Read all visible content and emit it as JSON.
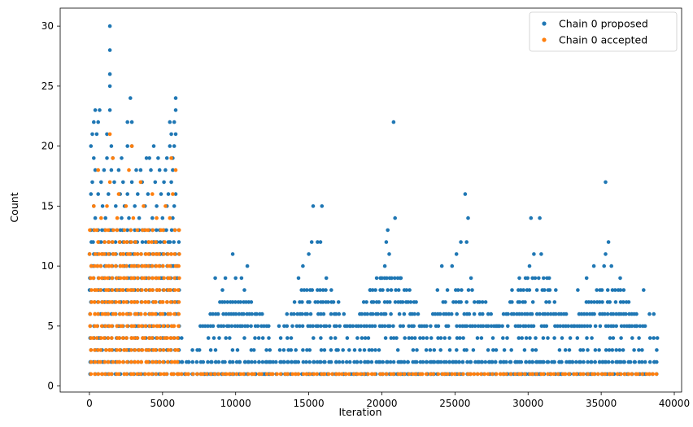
{
  "chart_data": {
    "type": "scatter",
    "xlabel": "Iteration",
    "ylabel": "Count",
    "xlim": [
      -2000,
      40500
    ],
    "ylim": [
      -0.5,
      31.5
    ],
    "xticks": [
      0,
      5000,
      10000,
      15000,
      20000,
      25000,
      30000,
      35000,
      40000
    ],
    "xtick_labels": [
      "0",
      "5000",
      "10000",
      "15000",
      "20000",
      "25000",
      "30000",
      "35000",
      "40000"
    ],
    "yticks": [
      0,
      5,
      10,
      15,
      20,
      25,
      30
    ],
    "ytick_labels": [
      "0",
      "5",
      "10",
      "15",
      "20",
      "25",
      "30"
    ],
    "grid": false,
    "legend_position": "top-right",
    "series": [
      {
        "name": "Chain 0 proposed",
        "color": "#1f77b4",
        "regimes": [
          {
            "x_range": [
              0,
              6000
            ],
            "y_max": 13,
            "density": 1.0
          },
          {
            "x_range": [
              6000,
              38800
            ],
            "y_max": 2,
            "density": 1.0
          },
          {
            "x_range": [
              6000,
              38800
            ],
            "y_max": 4,
            "density": 0.55
          }
        ],
        "cycle_peaks": [
          {
            "center": 10000,
            "y_max": 7
          },
          {
            "center": 15500,
            "y_max": 8
          },
          {
            "center": 20500,
            "y_max": 9
          },
          {
            "center": 25500,
            "y_max": 8
          },
          {
            "center": 30500,
            "y_max": 9
          },
          {
            "center": 35500,
            "y_max": 8
          }
        ],
        "points": [
          [
            1400,
            30
          ],
          [
            1400,
            28
          ],
          [
            1400,
            26
          ],
          [
            1400,
            25
          ],
          [
            1400,
            23
          ],
          [
            2800,
            24
          ],
          [
            5900,
            24
          ],
          [
            5900,
            23
          ],
          [
            400,
            23
          ],
          [
            700,
            23
          ],
          [
            300,
            22
          ],
          [
            600,
            22
          ],
          [
            2600,
            22
          ],
          [
            2900,
            22
          ],
          [
            5500,
            22
          ],
          [
            5800,
            22
          ],
          [
            200,
            21
          ],
          [
            500,
            21
          ],
          [
            1200,
            21
          ],
          [
            5600,
            21
          ],
          [
            5900,
            21
          ],
          [
            100,
            20
          ],
          [
            1500,
            20
          ],
          [
            2600,
            20
          ],
          [
            2900,
            20
          ],
          [
            4400,
            20
          ],
          [
            5500,
            20
          ],
          [
            5800,
            20
          ],
          [
            300,
            19
          ],
          [
            1200,
            19
          ],
          [
            1600,
            19
          ],
          [
            2200,
            19
          ],
          [
            3900,
            19
          ],
          [
            4100,
            19
          ],
          [
            4700,
            19
          ],
          [
            5300,
            19
          ],
          [
            5700,
            19
          ],
          [
            400,
            18
          ],
          [
            1000,
            18
          ],
          [
            1500,
            18
          ],
          [
            2000,
            18
          ],
          [
            3200,
            18
          ],
          [
            3500,
            18
          ],
          [
            4200,
            18
          ],
          [
            4800,
            18
          ],
          [
            5200,
            18
          ],
          [
            5700,
            18
          ],
          [
            200,
            17
          ],
          [
            800,
            17
          ],
          [
            1700,
            17
          ],
          [
            2300,
            17
          ],
          [
            2900,
            17
          ],
          [
            3600,
            17
          ],
          [
            4500,
            17
          ],
          [
            5100,
            17
          ],
          [
            5600,
            17
          ],
          [
            100,
            16
          ],
          [
            600,
            16
          ],
          [
            1300,
            16
          ],
          [
            2100,
            16
          ],
          [
            2600,
            16
          ],
          [
            3300,
            16
          ],
          [
            4000,
            16
          ],
          [
            4900,
            16
          ],
          [
            5400,
            16
          ],
          [
            5900,
            16
          ],
          [
            300,
            15
          ],
          [
            900,
            15
          ],
          [
            1800,
            15
          ],
          [
            2400,
            15
          ],
          [
            3100,
            15
          ],
          [
            3800,
            15
          ],
          [
            4600,
            15
          ],
          [
            5300,
            15
          ],
          [
            5800,
            15
          ],
          [
            400,
            14
          ],
          [
            1100,
            14
          ],
          [
            2200,
            14
          ],
          [
            2700,
            14
          ],
          [
            3400,
            14
          ],
          [
            4300,
            14
          ],
          [
            5000,
            14
          ],
          [
            5700,
            14
          ],
          [
            9800,
            11
          ],
          [
            10800,
            10
          ],
          [
            9300,
            9
          ],
          [
            10000,
            9
          ],
          [
            10400,
            9
          ],
          [
            10600,
            8
          ],
          [
            8600,
            9
          ],
          [
            9100,
            8
          ],
          [
            15300,
            15
          ],
          [
            15900,
            15
          ],
          [
            15200,
            12
          ],
          [
            15600,
            12
          ],
          [
            15800,
            12
          ],
          [
            14600,
            10
          ],
          [
            15000,
            11
          ],
          [
            14300,
            9
          ],
          [
            16200,
            9
          ],
          [
            20800,
            22
          ],
          [
            20400,
            13
          ],
          [
            20300,
            12
          ],
          [
            20900,
            14
          ],
          [
            20500,
            11
          ],
          [
            20200,
            10
          ],
          [
            19900,
            9
          ],
          [
            21300,
            9
          ],
          [
            19200,
            8
          ],
          [
            25700,
            16
          ],
          [
            25900,
            14
          ],
          [
            25400,
            12
          ],
          [
            25800,
            12
          ],
          [
            25100,
            11
          ],
          [
            24800,
            10
          ],
          [
            24100,
            10
          ],
          [
            26100,
            9
          ],
          [
            23800,
            8
          ],
          [
            30200,
            14
          ],
          [
            30800,
            14
          ],
          [
            30400,
            11
          ],
          [
            30900,
            11
          ],
          [
            30100,
            10
          ],
          [
            29400,
            9
          ],
          [
            31300,
            9
          ],
          [
            28900,
            8
          ],
          [
            35300,
            17
          ],
          [
            35500,
            12
          ],
          [
            35300,
            11
          ],
          [
            35200,
            10
          ],
          [
            35700,
            10
          ],
          [
            34500,
            10
          ],
          [
            34000,
            9
          ],
          [
            36300,
            9
          ],
          [
            33400,
            8
          ],
          [
            37900,
            8
          ],
          [
            38300,
            6
          ],
          [
            38600,
            6
          ],
          [
            36900,
            5
          ],
          [
            37400,
            5
          ]
        ]
      },
      {
        "name": "Chain 0 accepted",
        "color": "#ff7f0e",
        "regimes": [
          {
            "x_range": [
              0,
              6000
            ],
            "y_max": 11,
            "density": 1.0
          },
          {
            "x_range": [
              0,
              6000
            ],
            "y_min": 12,
            "y_max": 13,
            "density": 0.6
          },
          {
            "x_range": [
              6000,
              38800
            ],
            "y_max": 1,
            "density": 1.0
          }
        ],
        "points": [
          [
            1400,
            21
          ],
          [
            2900,
            20
          ],
          [
            1600,
            19
          ],
          [
            5600,
            19
          ],
          [
            600,
            18
          ],
          [
            2700,
            18
          ],
          [
            5900,
            18
          ],
          [
            1400,
            17
          ],
          [
            3500,
            17
          ],
          [
            2000,
            16
          ],
          [
            4300,
            16
          ],
          [
            5700,
            16
          ],
          [
            300,
            15
          ],
          [
            1200,
            15
          ],
          [
            2500,
            15
          ],
          [
            3700,
            15
          ],
          [
            5200,
            15
          ],
          [
            800,
            14
          ],
          [
            1900,
            14
          ],
          [
            3000,
            14
          ],
          [
            4600,
            14
          ],
          [
            5500,
            14
          ]
        ]
      }
    ]
  }
}
